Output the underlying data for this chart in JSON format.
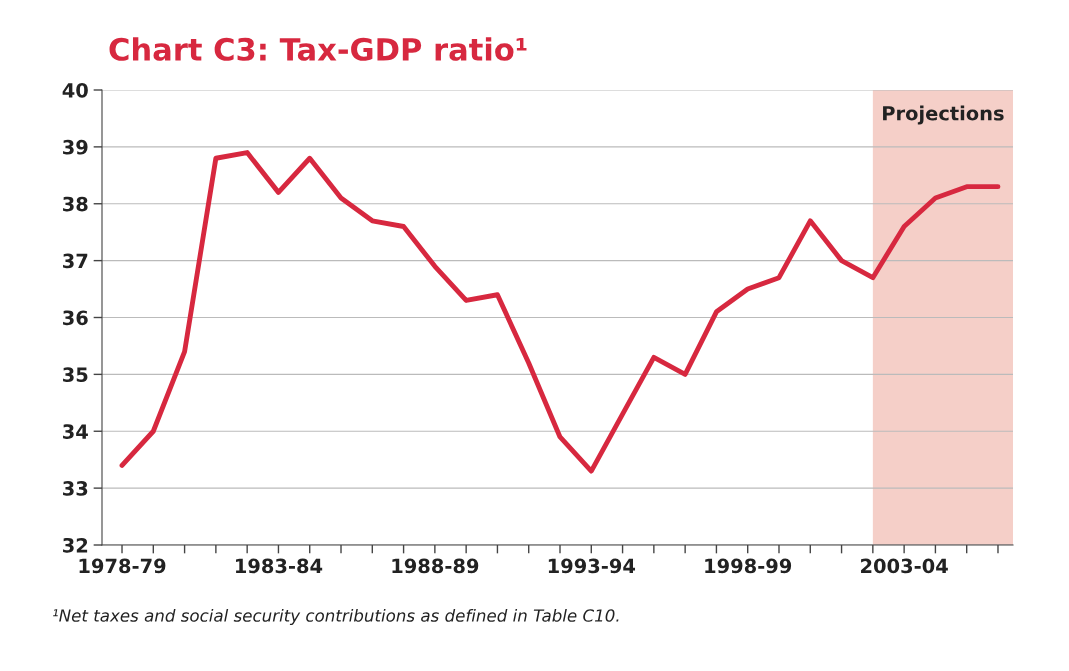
{
  "chart_data": {
    "type": "line",
    "title": "Chart C3: Tax-GDP ratio¹",
    "categories": [
      "1978-79",
      null,
      null,
      null,
      null,
      "1983-84",
      null,
      null,
      null,
      null,
      "1988-89",
      null,
      null,
      null,
      null,
      "1993-94",
      null,
      null,
      null,
      null,
      "1998-99",
      null,
      null,
      null,
      null,
      "2003-04",
      null,
      null,
      null
    ],
    "series": [
      {
        "color": "#d7283f",
        "values": [
          33.4,
          34.0,
          35.4,
          38.8,
          38.9,
          38.2,
          38.8,
          38.1,
          37.7,
          37.6,
          36.9,
          36.3,
          36.4,
          35.2,
          33.9,
          33.3,
          34.3,
          35.3,
          35.0,
          36.1,
          36.5,
          36.7,
          37.7,
          37.0,
          36.7,
          37.6,
          38.1,
          38.3,
          38.3
        ]
      }
    ],
    "ylim": [
      32,
      40
    ],
    "yticks": [
      32,
      33,
      34,
      35,
      36,
      37,
      38,
      39,
      40
    ],
    "grid": "y",
    "marker": "none",
    "line_style": "solid",
    "legend": false,
    "annotations": [
      "Projections",
      "¹Net taxes and social security contributions as defined in Table C10."
    ]
  }
}
